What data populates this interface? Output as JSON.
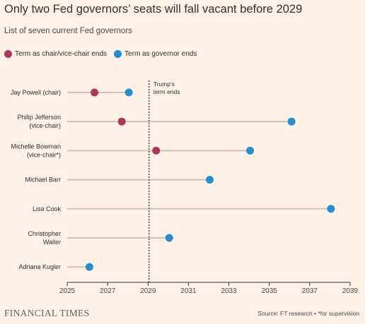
{
  "header": {
    "title": "Only two Fed governors’ seats will fall vacant before 2029",
    "subtitle": "List of seven current Fed governors"
  },
  "legend": [
    {
      "label": "Term as chair/vice-chair ends",
      "color": "#b0355c"
    },
    {
      "label": "Term as governor ends",
      "color": "#2090d0"
    }
  ],
  "chart_data": {
    "type": "scatter",
    "title": "Only two Fed governors’ seats will fall vacant before 2029",
    "subtitle": "List of seven current Fed governors",
    "xlim": [
      2025,
      2039
    ],
    "x_ticks": [
      2025,
      2027,
      2029,
      2031,
      2033,
      2035,
      2037,
      2039
    ],
    "grid": false,
    "categories": [
      [
        "Jay Powell (chair)"
      ],
      [
        "Philip Jefferson",
        "(vice-chair)"
      ],
      [
        "Michelle Bowman",
        "(vice-chair*)"
      ],
      [
        "Michael Barr"
      ],
      [
        "Lisa Cook"
      ],
      [
        "Christopher",
        "Waller"
      ],
      [
        "Adriana Kugler"
      ]
    ],
    "series": [
      {
        "name": "Term as chair/vice-chair ends",
        "color": "#b0355c",
        "values": [
          2026.35,
          2027.7,
          2029.4,
          null,
          null,
          null,
          null
        ]
      },
      {
        "name": "Term as governor ends",
        "color": "#2090d0",
        "values": [
          2028.05,
          2036.1,
          2034.05,
          2032.05,
          2038.05,
          2030.05,
          2026.1
        ]
      }
    ],
    "reference_line": {
      "x": 2029.05,
      "label": [
        "Trump's",
        "term ends"
      ]
    }
  },
  "footer": {
    "logo": "FINANCIAL TIMES",
    "source": "Source: FT research • *for supervision"
  }
}
